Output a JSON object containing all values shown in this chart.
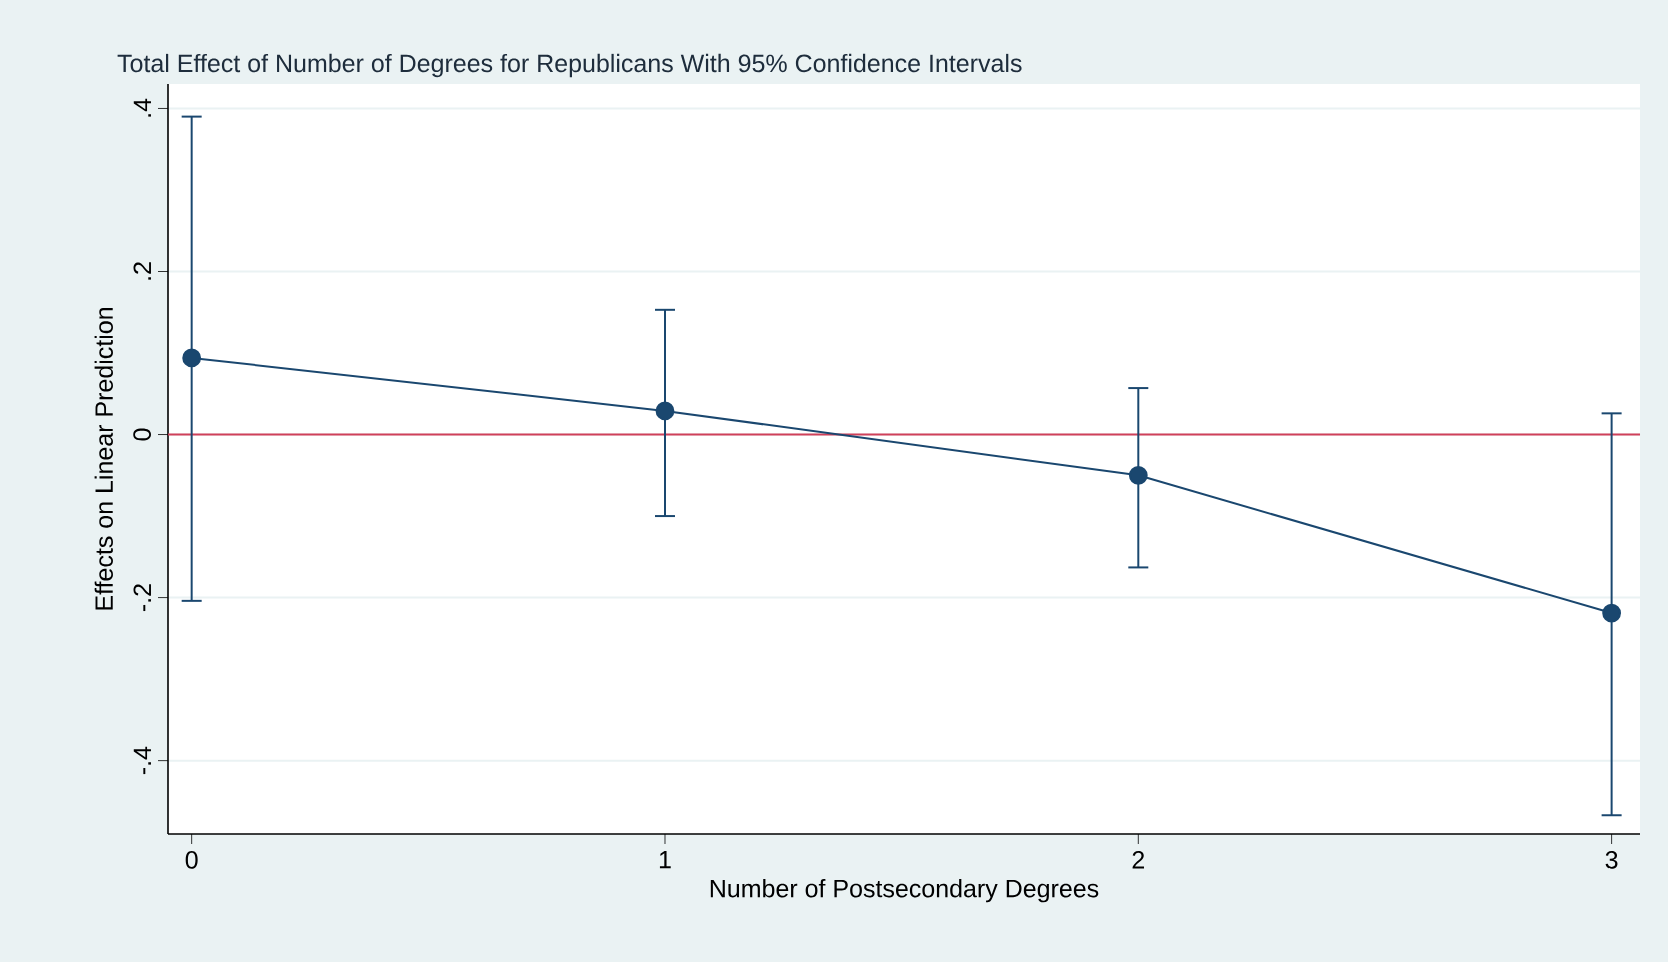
{
  "chart_data": {
    "type": "line",
    "title": "Total Effect of Number of Degrees for Republicans With 95% Confidence Intervals",
    "xlabel": "Number of Postsecondary Degrees",
    "ylabel": "Effects on Linear Prediction",
    "x": [
      0,
      1,
      2,
      3
    ],
    "series": [
      {
        "color": "#1a476f",
        "values": [
          0.094,
          0.029,
          -0.05,
          -0.219
        ],
        "errors": [
          [
            -0.204,
            0.39
          ],
          [
            -0.1,
            0.153
          ],
          [
            -0.163,
            0.057
          ],
          [
            -0.467,
            0.026
          ]
        ]
      }
    ],
    "xlim": [
      -0.05,
      3.06
    ],
    "ylim": [
      -0.49,
      0.43
    ],
    "xticks": [
      0,
      1,
      2,
      3
    ],
    "yticks": [
      {
        "value": -0.4,
        "label": "-.4"
      },
      {
        "value": -0.2,
        "label": "-.2"
      },
      0,
      {
        "value": 0.2,
        "label": ".2"
      },
      {
        "value": 0.4,
        "label": ".4"
      }
    ],
    "ref_lines": [
      {
        "axis": "y",
        "value": 0,
        "color": "#d0405a"
      }
    ],
    "grid": "y",
    "marker": "circle",
    "line_style": "solid"
  }
}
